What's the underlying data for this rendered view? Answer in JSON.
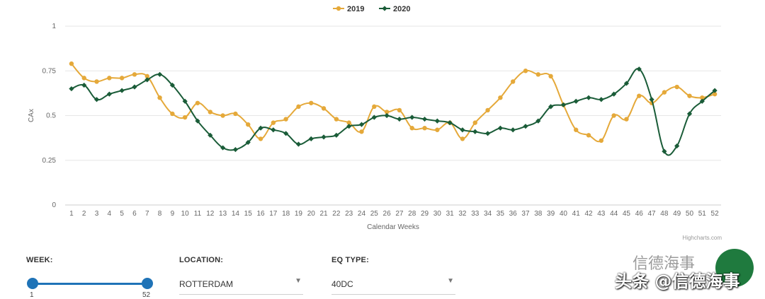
{
  "chart_data": {
    "type": "line",
    "title": "",
    "xlabel": "Calendar Weeks",
    "ylabel": "CAx",
    "ylim": [
      0,
      1
    ],
    "yticks": [
      "0",
      "0.25",
      "0.5",
      "0.75",
      "1"
    ],
    "categories": [
      "1",
      "2",
      "3",
      "4",
      "5",
      "6",
      "7",
      "8",
      "9",
      "10",
      "11",
      "12",
      "13",
      "14",
      "15",
      "16",
      "17",
      "18",
      "19",
      "20",
      "21",
      "22",
      "23",
      "24",
      "25",
      "26",
      "27",
      "28",
      "29",
      "30",
      "31",
      "32",
      "33",
      "34",
      "35",
      "36",
      "37",
      "38",
      "39",
      "40",
      "41",
      "42",
      "43",
      "44",
      "45",
      "46",
      "47",
      "48",
      "49",
      "50",
      "51",
      "52"
    ],
    "legend_position": "top-center",
    "series": [
      {
        "name": "2019",
        "color": "#e5a93a",
        "marker": "circle",
        "values": [
          0.79,
          0.71,
          0.69,
          0.71,
          0.71,
          0.73,
          0.72,
          0.6,
          0.51,
          0.49,
          0.57,
          0.52,
          0.5,
          0.51,
          0.45,
          0.37,
          0.46,
          0.48,
          0.55,
          0.57,
          0.54,
          0.48,
          0.46,
          0.41,
          0.55,
          0.52,
          0.53,
          0.43,
          0.43,
          0.42,
          0.46,
          0.37,
          0.46,
          0.53,
          0.6,
          0.69,
          0.75,
          0.73,
          0.72,
          0.56,
          0.42,
          0.39,
          0.36,
          0.5,
          0.48,
          0.61,
          0.57,
          0.63,
          0.66,
          0.61,
          0.6,
          0.62
        ]
      },
      {
        "name": "2020",
        "color": "#1a5c38",
        "marker": "diamond",
        "values": [
          0.65,
          0.67,
          0.59,
          0.62,
          0.64,
          0.66,
          0.7,
          0.73,
          0.67,
          0.58,
          0.47,
          0.39,
          0.32,
          0.31,
          0.35,
          0.43,
          0.42,
          0.4,
          0.34,
          0.37,
          0.38,
          0.39,
          0.44,
          0.45,
          0.49,
          0.5,
          0.48,
          0.49,
          0.48,
          0.47,
          0.46,
          0.42,
          0.41,
          0.4,
          0.43,
          0.42,
          0.44,
          0.47,
          0.55,
          0.56,
          0.58,
          0.6,
          0.59,
          0.62,
          0.68,
          0.76,
          0.59,
          0.3,
          0.33,
          0.51,
          0.58,
          0.64
        ]
      }
    ],
    "credits": "Highcharts.com"
  },
  "controls": {
    "week": {
      "label": "WEEK:",
      "min_value": "1",
      "max_value": "52"
    },
    "location": {
      "label": "LOCATION:",
      "value": "ROTTERDAM"
    },
    "eq_type": {
      "label": "EQ TYPE:",
      "value": "40DC"
    }
  },
  "watermark": {
    "line1": "信德海事",
    "line2": "头条 @信德海事"
  }
}
